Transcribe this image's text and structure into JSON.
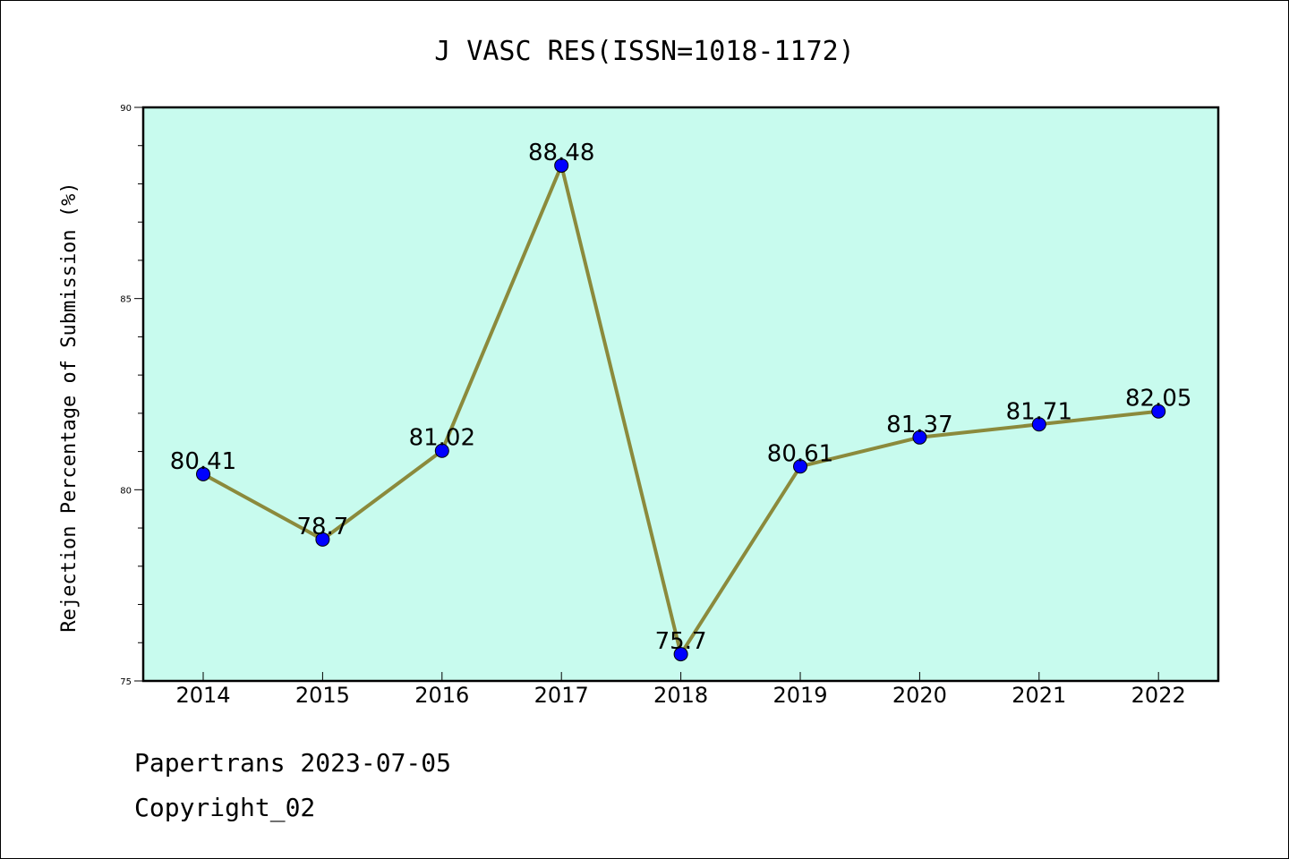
{
  "chart_data": {
    "type": "line",
    "title": "J VASC RES(ISSN=1018-1172)",
    "ylabel": "Rejection Percentage of Submission (%)",
    "xlabel": "",
    "categories": [
      "2014",
      "2015",
      "2016",
      "2017",
      "2018",
      "2019",
      "2020",
      "2021",
      "2022"
    ],
    "values": [
      80.41,
      78.7,
      81.02,
      88.48,
      75.7,
      80.61,
      81.37,
      81.71,
      82.05
    ],
    "data_labels": [
      "80.41",
      "78.7",
      "81.02",
      "88.48",
      "75.7",
      "80.61",
      "81.37",
      "81.71",
      "82.05"
    ],
    "ylim": [
      75,
      90
    ],
    "yticks": [
      "75",
      "80",
      "85",
      "90"
    ],
    "grid": false,
    "colors": {
      "plot_background": "#c8fbee",
      "line": "#8b8a3c",
      "marker": "#0000ff"
    }
  },
  "footer": {
    "line1": "Papertrans 2023-07-05",
    "line2": "Copyright_02"
  }
}
